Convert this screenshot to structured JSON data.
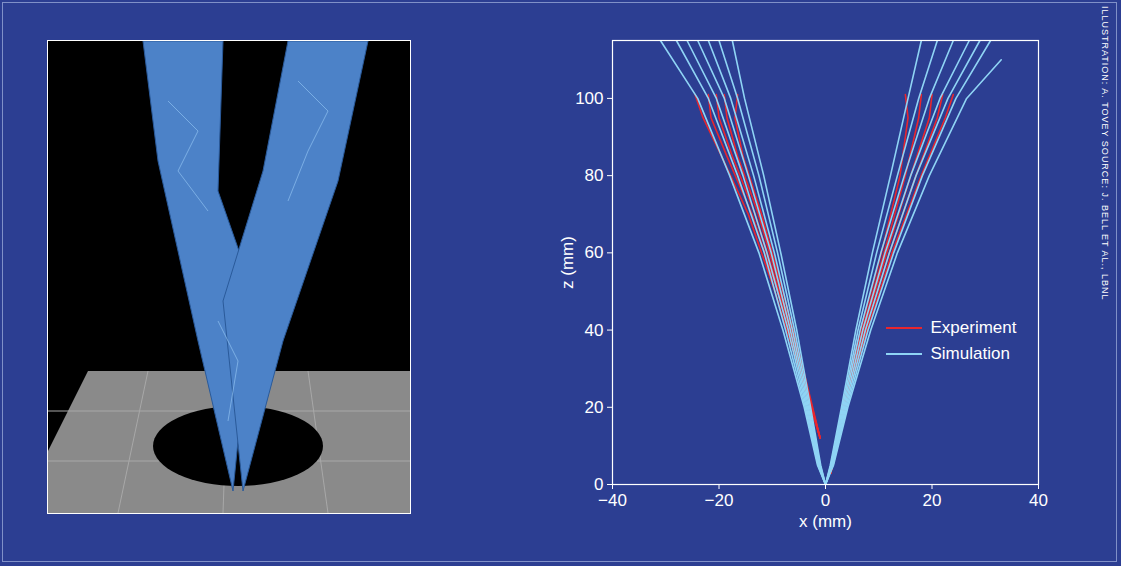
{
  "chart_data": {
    "type": "line",
    "xlabel": "x (mm)",
    "ylabel": "z (mm)",
    "xlim": [
      -40,
      40
    ],
    "ylim": [
      0,
      115
    ],
    "xticks": [
      {
        "value": -40,
        "label": "−40"
      },
      {
        "value": -20,
        "label": "−20"
      },
      0,
      20,
      40
    ],
    "yticks": [
      0,
      20,
      40,
      60,
      80,
      100
    ],
    "grid": false,
    "legend": "lower right",
    "annotations": [
      "ILLUSTRATION: A. TOVEY SOURCE: J. BELL ET AL., LBNL"
    ],
    "series": [
      {
        "name": "Experiment",
        "color": "#e8262e",
        "lines": [
          {
            "x": [
              -1,
              -5,
              -9.5,
              -14.5,
              -19.5,
              -23,
              -24.5
            ],
            "y": [
              12,
              30,
              50,
              70,
              85,
              95,
              101
            ]
          },
          {
            "x": [
              -1,
              -4.8,
              -9,
              -13.8,
              -18.5,
              -21.5,
              -22
            ],
            "y": [
              12,
              30,
              50,
              70,
              85,
              95,
              101
            ]
          },
          {
            "x": [
              -1,
              -4.6,
              -8.7,
              -13.2,
              -17.5,
              -20,
              -20.5
            ],
            "y": [
              12,
              30,
              50,
              70,
              85,
              95,
              101
            ]
          },
          {
            "x": [
              -1,
              -4.4,
              -8.4,
              -12.6,
              -16.5,
              -18.5,
              -19
            ],
            "y": [
              12,
              30,
              50,
              70,
              85,
              95,
              101
            ]
          },
          {
            "x": [
              -1,
              -4.2,
              -8,
              -12,
              -15.5,
              -17,
              -16.5
            ],
            "y": [
              12,
              30,
              50,
              70,
              85,
              95,
              101
            ]
          },
          {
            "x": [
              1,
              3.5,
              7.8,
              12.5,
              18,
              22.5,
              24
            ],
            "y": [
              3,
              20,
              40,
              60,
              80,
              95,
              101
            ]
          },
          {
            "x": [
              1,
              3.4,
              7.5,
              12,
              17,
              21,
              22
            ],
            "y": [
              3,
              20,
              40,
              60,
              80,
              95,
              101
            ]
          },
          {
            "x": [
              1,
              3.3,
              7.2,
              11.5,
              16,
              19.5,
              20
            ],
            "y": [
              3,
              20,
              40,
              60,
              80,
              95,
              101
            ]
          },
          {
            "x": [
              1,
              3.2,
              6.9,
              11,
              15,
              17.5,
              18
            ],
            "y": [
              3,
              20,
              40,
              60,
              80,
              95,
              101
            ]
          },
          {
            "x": [
              1,
              3.1,
              6.6,
              10.5,
              14,
              15.5,
              15
            ],
            "y": [
              3,
              20,
              40,
              60,
              80,
              95,
              101
            ]
          }
        ]
      },
      {
        "name": "Simulation",
        "color": "#8fd4f5",
        "lines": [
          {
            "x": [
              0,
              -1.5,
              -4,
              -8,
              -12.5,
              -18,
              -24,
              -31
            ],
            "y": [
              0,
              5,
              20,
              40,
              60,
              80,
              100,
              115
            ]
          },
          {
            "x": [
              0,
              -1.4,
              -3.8,
              -7.5,
              -11.5,
              -16.5,
              -22,
              -28
            ],
            "y": [
              0,
              5,
              20,
              40,
              60,
              80,
              100,
              115
            ]
          },
          {
            "x": [
              0,
              -1.3,
              -3.6,
              -7,
              -11,
              -15.5,
              -20.5,
              -26
            ],
            "y": [
              0,
              5,
              20,
              40,
              60,
              80,
              100,
              115
            ]
          },
          {
            "x": [
              0,
              -1.2,
              -3.4,
              -6.6,
              -10.2,
              -14.5,
              -19,
              -24
            ],
            "y": [
              0,
              5,
              20,
              40,
              60,
              80,
              100,
              115
            ]
          },
          {
            "x": [
              0,
              -1.1,
              -3.2,
              -6.2,
              -9.6,
              -13.5,
              -17.8,
              -22
            ],
            "y": [
              0,
              5,
              20,
              40,
              60,
              80,
              100,
              115
            ]
          },
          {
            "x": [
              0,
              -1,
              -3,
              -5.8,
              -9,
              -12.5,
              -16.5,
              -20
            ],
            "y": [
              0,
              5,
              20,
              40,
              60,
              80,
              100,
              115
            ]
          },
          {
            "x": [
              0,
              -0.9,
              -2.8,
              -5.4,
              -8.4,
              -11.6,
              -15.2,
              -17.5
            ],
            "y": [
              0,
              5,
              20,
              40,
              60,
              80,
              100,
              115
            ]
          },
          {
            "x": [
              0,
              1.5,
              4.2,
              8.5,
              13.5,
              19.5,
              26.5,
              33
            ],
            "y": [
              0,
              5,
              20,
              40,
              60,
              80,
              100,
              110
            ]
          },
          {
            "x": [
              0,
              1.4,
              4,
              8,
              12.8,
              18.2,
              24.5,
              31
            ],
            "y": [
              0,
              5,
              20,
              40,
              60,
              80,
              100,
              115
            ]
          },
          {
            "x": [
              0,
              1.3,
              3.8,
              7.5,
              12,
              17,
              23,
              29
            ],
            "y": [
              0,
              5,
              20,
              40,
              60,
              80,
              100,
              115
            ]
          },
          {
            "x": [
              0,
              1.2,
              3.6,
              7,
              11.2,
              16,
              21.5,
              27
            ],
            "y": [
              0,
              5,
              20,
              40,
              60,
              80,
              100,
              115
            ]
          },
          {
            "x": [
              0,
              1.1,
              3.4,
              6.5,
              10.4,
              14.8,
              19.5,
              24
            ],
            "y": [
              0,
              5,
              20,
              40,
              60,
              80,
              100,
              115
            ]
          },
          {
            "x": [
              0,
              1,
              3.2,
              6.1,
              9.6,
              13.5,
              17.5,
              21
            ],
            "y": [
              0,
              5,
              20,
              40,
              60,
              80,
              100,
              115
            ]
          },
          {
            "x": [
              0,
              0.9,
              3,
              5.7,
              8.8,
              12.2,
              15.5,
              18
            ],
            "y": [
              0,
              5,
              20,
              40,
              60,
              80,
              100,
              115
            ]
          }
        ]
      }
    ]
  }
}
